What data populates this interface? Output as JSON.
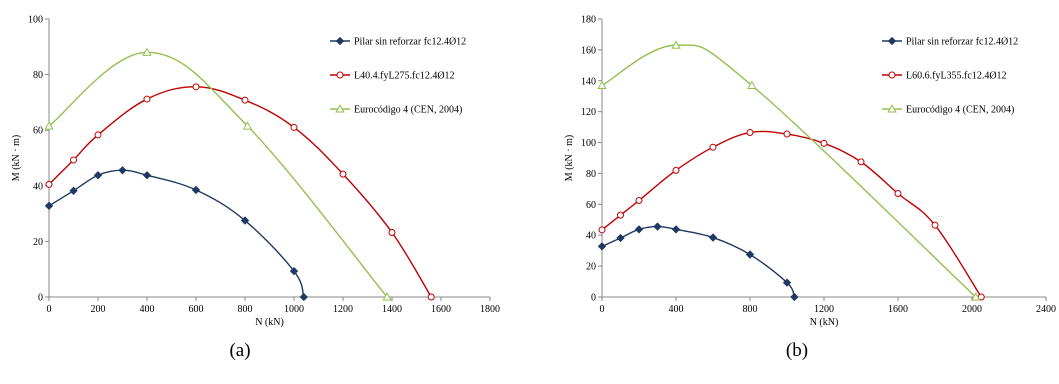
{
  "chart_data": [
    {
      "type": "line",
      "panel_label": "(a)",
      "xlabel": "N (kN)",
      "ylabel": "M (kN · m)",
      "xlim": [
        0,
        1800
      ],
      "ylim": [
        0,
        100
      ],
      "xticks": [
        0,
        200,
        400,
        600,
        800,
        1000,
        1200,
        1400,
        1600,
        1800
      ],
      "yticks": [
        0,
        20,
        40,
        60,
        80,
        100
      ],
      "grid": false,
      "legend_position": "right",
      "series": [
        {
          "name": "Pilar sin reforzar fc12.4Ø12",
          "color": "#1f3864",
          "marker": "diamond",
          "x": [
            0,
            100,
            200,
            300,
            400,
            600,
            800,
            1000,
            1040
          ],
          "y": [
            32.8,
            38.2,
            43.8,
            45.6,
            43.8,
            38.5,
            27.5,
            9.3,
            0
          ]
        },
        {
          "name": "L40.4.fyL275.fc12.4Ø12",
          "color": "#c00000",
          "marker": "circle",
          "x": [
            0,
            100,
            200,
            400,
            600,
            800,
            1000,
            1200,
            1400,
            1560
          ],
          "y": [
            40.5,
            49.3,
            58.3,
            71.2,
            75.6,
            70.8,
            61,
            44.2,
            23.2,
            0
          ]
        },
        {
          "name": "Eurocódigo 4 (CEN, 2004)",
          "color": "#92c050",
          "marker": "triangle",
          "x": [
            0,
            400,
            810,
            1380
          ],
          "y": [
            61.5,
            88,
            61.5,
            0
          ]
        }
      ]
    },
    {
      "type": "line",
      "panel_label": "(b)",
      "xlabel": "N (kN)",
      "ylabel": "M (kN · m)",
      "xlim": [
        0,
        2400
      ],
      "ylim": [
        0,
        180
      ],
      "xticks": [
        0,
        400,
        800,
        1200,
        1600,
        2000,
        2400
      ],
      "yticks": [
        0,
        20,
        40,
        60,
        80,
        100,
        120,
        140,
        160,
        180
      ],
      "grid": false,
      "legend_position": "right",
      "series": [
        {
          "name": "Pilar sin reforzar fc12.4Ø12",
          "color": "#1f3864",
          "marker": "diamond",
          "x": [
            0,
            100,
            200,
            300,
            400,
            600,
            800,
            1000,
            1040
          ],
          "y": [
            32.8,
            38.2,
            43.8,
            45.6,
            43.8,
            38.5,
            27.5,
            9.3,
            0
          ]
        },
        {
          "name": "L60.6.fyL355.fc12.4Ø12",
          "color": "#c00000",
          "marker": "circle",
          "x": [
            0,
            100,
            200,
            400,
            600,
            800,
            1000,
            1200,
            1400,
            1600,
            1800,
            2050
          ],
          "y": [
            43.5,
            53,
            62.5,
            82,
            97,
            106.5,
            105.5,
            99.5,
            87.5,
            67,
            46.5,
            0
          ]
        },
        {
          "name": "Eurocódigo 4 (CEN, 2004)",
          "color": "#92c050",
          "marker": "triangle",
          "x": [
            0,
            400,
            810,
            2020
          ],
          "y": [
            137,
            163,
            137,
            0
          ]
        }
      ]
    }
  ]
}
